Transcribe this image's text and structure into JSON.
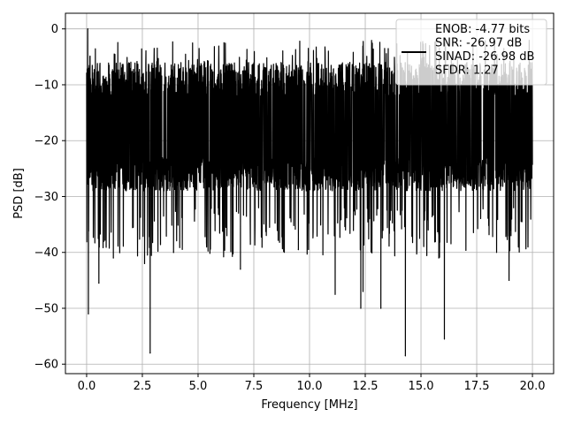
{
  "chart_data": {
    "type": "line",
    "title": "",
    "xlabel": "Frequency [MHz]",
    "ylabel": "PSD [dB]",
    "xlim": [
      -0.95,
      20.95
    ],
    "ylim": [
      -61.7,
      2.8
    ],
    "xticks": [
      0.0,
      2.5,
      5.0,
      7.5,
      10.0,
      12.5,
      15.0,
      17.5,
      20.0
    ],
    "xtick_labels": [
      "0.0",
      "2.5",
      "5.0",
      "7.5",
      "10.0",
      "12.5",
      "15.0",
      "17.5",
      "20.0"
    ],
    "yticks": [
      0,
      -10,
      -20,
      -30,
      -40,
      -50,
      -60
    ],
    "ytick_labels": [
      "0",
      "−10",
      "−20",
      "−30",
      "−40",
      "−50",
      "−60"
    ],
    "grid": true,
    "legend_position": "top-right",
    "legend_lines": [
      "ENOB: -4.77 bits",
      "SNR: -26.97 dB",
      "SINAD: -26.98 dB",
      "SFDR: 1.27"
    ],
    "series": [
      {
        "color": "#000000",
        "x_range": [
          0,
          20
        ],
        "noise_band_db": [
          -29,
          -6
        ],
        "notable_points": [
          {
            "x": 0.05,
            "y": 0
          },
          {
            "x": 0.08,
            "y": -51
          },
          {
            "x": 0.55,
            "y": -45.5
          },
          {
            "x": 1.2,
            "y": -41
          },
          {
            "x": 2.6,
            "y": -42
          },
          {
            "x": 2.85,
            "y": -58
          },
          {
            "x": 3.9,
            "y": -40
          },
          {
            "x": 6.9,
            "y": -43
          },
          {
            "x": 9.5,
            "y": -39.5
          },
          {
            "x": 11.15,
            "y": -47.5
          },
          {
            "x": 12.3,
            "y": -50
          },
          {
            "x": 12.4,
            "y": -47
          },
          {
            "x": 13.2,
            "y": -50
          },
          {
            "x": 14.3,
            "y": -58.5
          },
          {
            "x": 15.8,
            "y": -41
          },
          {
            "x": 16.05,
            "y": -55.5
          },
          {
            "x": 18.95,
            "y": -45
          }
        ]
      }
    ]
  }
}
